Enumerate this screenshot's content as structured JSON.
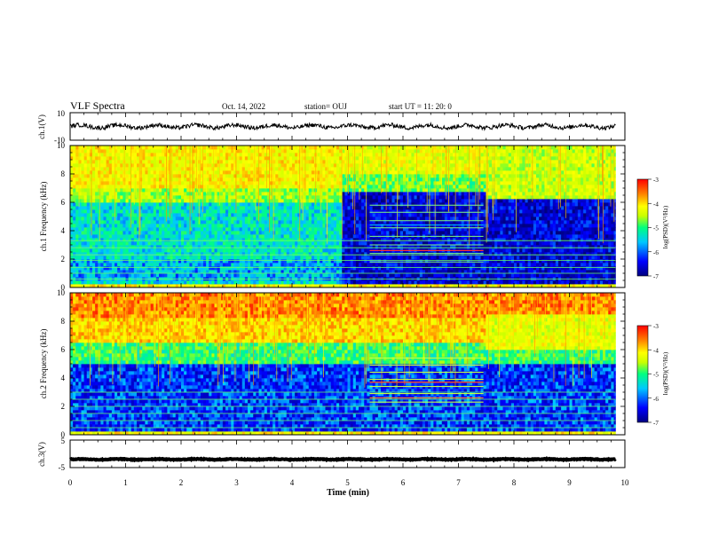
{
  "header": {
    "title": "VLF Spectra",
    "date": "Oct. 14, 2022",
    "station": "station= OUJ",
    "start_ut": "start  UT =  11: 20: 0"
  },
  "chart_data": {
    "type": "heatmap",
    "x": {
      "label": "Time  (min)",
      "range": [
        0,
        10
      ],
      "ticks": [
        0,
        1,
        2,
        3,
        4,
        5,
        6,
        7,
        8,
        9,
        10
      ],
      "data_end": 9.83
    },
    "panels": [
      {
        "id": "ch1_waveform",
        "type": "line",
        "ylabel": "ch.1(V)",
        "ylim": [
          -10,
          10
        ],
        "yticks": [
          "10",
          "-10"
        ],
        "baseline": 0,
        "amplitude": 3,
        "line_color": "#000000"
      },
      {
        "id": "ch1_spectrogram",
        "type": "heatmap",
        "ylabel": "ch.1 Frequency (kHz)",
        "ylim": [
          0,
          10
        ],
        "yticks": [
          0,
          2,
          4,
          6,
          8,
          10
        ],
        "regions": [
          {
            "t": [
              0,
              4.9
            ],
            "f": [
              0,
              10
            ],
            "level": "-5.5 (noise below 6.5 kHz), -4 (above 7 kHz)"
          },
          {
            "t": [
              4.9,
              9.83
            ],
            "f": [
              0,
              6.5
            ],
            "level": "-6.5 (quiet)"
          },
          {
            "t": [
              5.4,
              7.4
            ],
            "f": [
              1.5,
              6
            ],
            "level": "tonal lines"
          }
        ],
        "colorbar": {
          "label": "log(PSD)(V²/Hz)",
          "range": [
            -7,
            -3
          ],
          "ticks": [
            "-3",
            "-4",
            "-5",
            "-6",
            "-7"
          ]
        }
      },
      {
        "id": "ch2_spectrogram",
        "type": "heatmap",
        "ylabel": "ch.2 Frequency (kHz)",
        "ylim": [
          0,
          10
        ],
        "yticks": [
          0,
          2,
          4,
          6,
          8,
          10
        ],
        "regions": [
          {
            "t": [
              0,
              9.83
            ],
            "f": [
              6,
              10
            ],
            "level": "-3.5 (intense)"
          },
          {
            "t": [
              5.4,
              7.4
            ],
            "f": [
              2,
              5.5
            ],
            "level": "tonal lines"
          }
        ],
        "colorbar": {
          "label": "log(PSD)(V²/Hz)",
          "range": [
            -7,
            -3
          ],
          "ticks": [
            "-3",
            "-4",
            "-5",
            "-6",
            "-7"
          ]
        }
      },
      {
        "id": "ch3_waveform",
        "type": "line",
        "ylabel": "ch.3(V)",
        "ylim": [
          -5,
          5
        ],
        "yticks": [
          "5",
          "-5"
        ],
        "baseline": -2,
        "amplitude": 0.3,
        "line_color": "#000000"
      }
    ],
    "colormap": [
      "#000080",
      "#0000ff",
      "#00c8ff",
      "#00ff80",
      "#c8ff00",
      "#ffff00",
      "#ff8000",
      "#ff0000"
    ]
  }
}
